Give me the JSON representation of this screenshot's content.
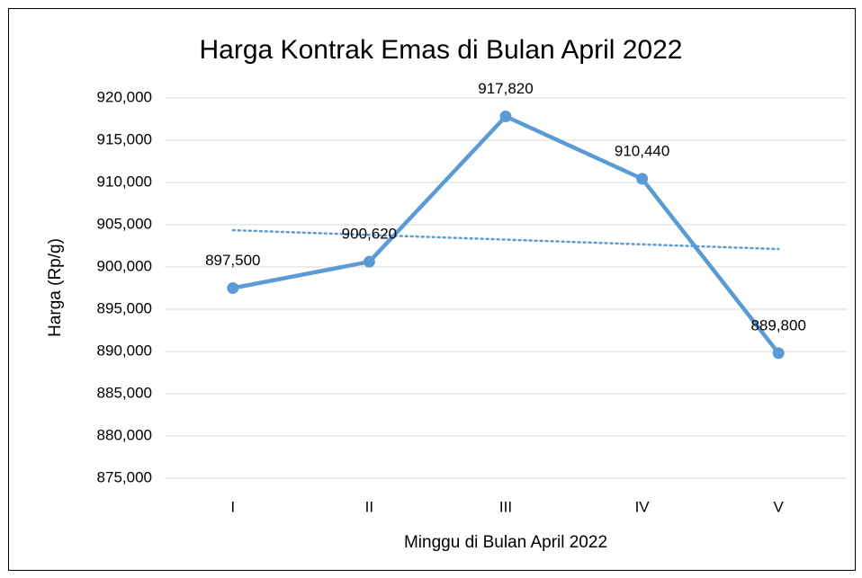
{
  "chart_data": {
    "type": "line",
    "title": "Harga Kontrak Emas di Bulan April 2022",
    "x_label": "Minggu di Bulan April 2022",
    "y_label": "Harga (Rp/g)",
    "categories": [
      "I",
      "II",
      "III",
      "IV",
      "V"
    ],
    "series": [
      {
        "name": "Harga",
        "color": "#5b9bd5",
        "values": [
          897500,
          900620,
          917820,
          910440,
          889800
        ],
        "value_labels": [
          "897,500",
          "900,620",
          "917,820",
          "910,440",
          "889,800"
        ]
      }
    ],
    "trendline": true,
    "ylim": [
      875000,
      920000
    ],
    "yticks": [
      {
        "value": 875000,
        "label": "875,000"
      },
      {
        "value": 880000,
        "label": "880,000"
      },
      {
        "value": 885000,
        "label": "885,000"
      },
      {
        "value": 890000,
        "label": "890,000"
      },
      {
        "value": 895000,
        "label": "895,000"
      },
      {
        "value": 900000,
        "label": "900,000"
      },
      {
        "value": 905000,
        "label": "905,000"
      },
      {
        "value": 910000,
        "label": "910,000"
      },
      {
        "value": 915000,
        "label": "915,000"
      },
      {
        "value": 920000,
        "label": "920,000"
      }
    ],
    "grid": true
  }
}
